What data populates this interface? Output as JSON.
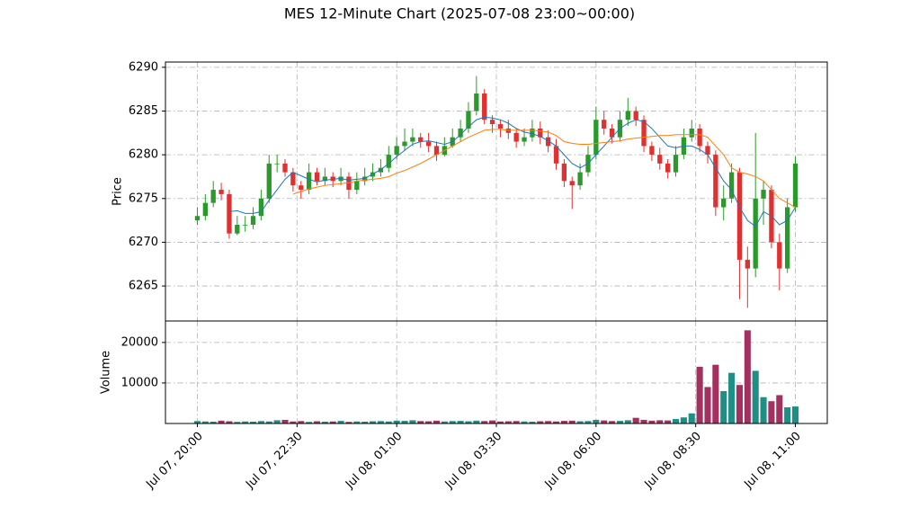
{
  "chart_data": {
    "type": "candlestick",
    "title": "MES 12-Minute Chart (2025-07-08 23:00~00:00)",
    "ylabel": "Price",
    "volume_label": "Volume",
    "grid": true,
    "xlim": [
      -4,
      79
    ],
    "xticks": [
      {
        "value": 0,
        "label": "Jul 07, 20:00"
      },
      {
        "value": 12.5,
        "label": "Jul 07, 22:30"
      },
      {
        "value": 25,
        "label": "Jul 08, 01:00"
      },
      {
        "value": 37.5,
        "label": "Jul 08, 03:30"
      },
      {
        "value": 50,
        "label": "Jul 08, 06:00"
      },
      {
        "value": 62.5,
        "label": "Jul 08, 08:30"
      },
      {
        "value": 75,
        "label": "Jul 08, 11:00"
      }
    ],
    "ylim": [
      6261,
      6290.6
    ],
    "yticks": [
      6265,
      6270,
      6275,
      6280,
      6285,
      6290
    ],
    "y2lim": [
      0,
      25300
    ],
    "y2ticks": [
      10000,
      20000
    ],
    "up_color": "#2a9a2a",
    "down_color": "#e03030",
    "volume_up_color": "#1f8f86",
    "volume_down_color": "#a3305f",
    "open": [
      6272.5,
      6273,
      6274.5,
      6276,
      6275.5,
      6271,
      6272,
      6272,
      6273,
      6275,
      6279,
      6279,
      6278,
      6276.5,
      6276,
      6278,
      6277,
      6277.5,
      6277,
      6277.5,
      6276,
      6277,
      6277.5,
      6278,
      6278.5,
      6280,
      6281,
      6281.5,
      6282,
      6281.5,
      6281,
      6280,
      6281,
      6282,
      6283,
      6285,
      6287,
      6284,
      6283.5,
      6283,
      6282.5,
      6281.5,
      6282,
      6283,
      6282,
      6281,
      6279,
      6277,
      6276.5,
      6278,
      6280,
      6284,
      6283,
      6282,
      6284,
      6285,
      6284,
      6281,
      6280,
      6279,
      6278,
      6280,
      6282,
      6283,
      6281,
      6280,
      6274,
      6275,
      6278,
      6268,
      6267,
      6275,
      6276,
      6270,
      6267,
      6274
    ],
    "high": [
      6274,
      6275.5,
      6277,
      6276.8,
      6276,
      6273,
      6273,
      6274,
      6276,
      6280,
      6280,
      6279.5,
      6278.5,
      6277,
      6279,
      6278.5,
      6278.5,
      6278,
      6278.5,
      6278,
      6278,
      6278.5,
      6279,
      6279.5,
      6281,
      6282,
      6283,
      6283,
      6282.5,
      6282.5,
      6281.5,
      6282,
      6283,
      6284,
      6286,
      6289,
      6287.5,
      6284.5,
      6284,
      6284,
      6283,
      6283,
      6284,
      6283.8,
      6282.8,
      6281.8,
      6279.5,
      6277.5,
      6279,
      6281,
      6285.5,
      6285,
      6283.5,
      6285,
      6286.5,
      6285.5,
      6284.5,
      6281.5,
      6280.8,
      6279.5,
      6281,
      6283,
      6284,
      6283.5,
      6281.5,
      6280.5,
      6276.5,
      6279,
      6278.5,
      6269.5,
      6282.5,
      6277,
      6276.5,
      6271,
      6275,
      6279.8
    ],
    "low": [
      6272,
      6272.5,
      6274,
      6274.8,
      6270.4,
      6270.8,
      6271.2,
      6271.5,
      6272.5,
      6274.5,
      6278,
      6277.5,
      6275.8,
      6275,
      6275.5,
      6276.5,
      6276.5,
      6276.3,
      6276.5,
      6275,
      6275.5,
      6276.5,
      6277,
      6277.5,
      6278,
      6279.5,
      6280.5,
      6281,
      6280.8,
      6280.3,
      6279.3,
      6279.8,
      6280.8,
      6281.5,
      6282.5,
      6284.5,
      6283.5,
      6282.5,
      6282,
      6281.8,
      6280.8,
      6281,
      6281.5,
      6281.2,
      6280.3,
      6278.3,
      6276.3,
      6273.8,
      6276,
      6277.5,
      6279.5,
      6282.3,
      6281.3,
      6281.5,
      6283.3,
      6283.3,
      6280.3,
      6279.3,
      6278.3,
      6277.3,
      6277.5,
      6279.5,
      6281.5,
      6280.3,
      6279,
      6273,
      6272.5,
      6274.5,
      6263.5,
      6262.5,
      6266,
      6272,
      6269.3,
      6264.5,
      6266.5,
      6273.5
    ],
    "close": [
      6273,
      6274.5,
      6276,
      6275.5,
      6271,
      6272,
      6272,
      6273,
      6275,
      6279,
      6279,
      6278,
      6276.5,
      6276,
      6278,
      6277,
      6277.5,
      6277,
      6277.5,
      6276,
      6277,
      6277.5,
      6278,
      6278.5,
      6280,
      6281,
      6281.5,
      6282,
      6281.5,
      6281,
      6280,
      6281,
      6282,
      6283,
      6285,
      6287,
      6284,
      6283.5,
      6283,
      6282.5,
      6281.5,
      6282,
      6283,
      6282,
      6281,
      6279,
      6277,
      6276.5,
      6278,
      6280,
      6284,
      6283,
      6282,
      6284,
      6285,
      6284,
      6281,
      6280,
      6279,
      6278,
      6280,
      6282,
      6283,
      6281,
      6280,
      6274,
      6275,
      6278,
      6268,
      6267,
      6275,
      6276,
      6270,
      6267,
      6274,
      6279
    ],
    "volume": [
      600,
      500,
      450,
      700,
      550,
      400,
      500,
      450,
      600,
      500,
      800,
      900,
      500,
      600,
      400,
      550,
      450,
      500,
      650,
      400,
      500,
      450,
      550,
      600,
      500,
      700,
      650,
      800,
      600,
      550,
      700,
      500,
      600,
      650,
      550,
      700,
      600,
      750,
      500,
      550,
      600,
      500,
      450,
      550,
      600,
      500,
      650,
      700,
      550,
      600,
      900,
      750,
      600,
      650,
      800,
      1400,
      900,
      700,
      800,
      750,
      1100,
      1500,
      2500,
      14000,
      9000,
      14500,
      8000,
      12500,
      9500,
      23000,
      13000,
      6500,
      5500,
      7000,
      4000,
      4200
    ],
    "moving_averages": [
      {
        "color": "#1f77b4",
        "values": [
          null,
          null,
          null,
          null,
          6273.5,
          6273.6,
          6273.3,
          6273.3,
          6273.5,
          6274.8,
          6276,
          6277.2,
          6278,
          6277.6,
          6277.2,
          6276.9,
          6277.1,
          6277.2,
          6277.3,
          6277.1,
          6277.2,
          6277.3,
          6277.8,
          6278.3,
          6279,
          6279.8,
          6280.5,
          6281.2,
          6281.5,
          6281.6,
          6281.4,
          6281.2,
          6281.5,
          6282.3,
          6283.2,
          6284,
          6284.3,
          6284.2,
          6284,
          6283.6,
          6283,
          6282.6,
          6282.4,
          6282.1,
          6281.6,
          6281,
          6280,
          6279,
          6278.5,
          6279,
          6280,
          6281,
          6282,
          6283,
          6283.6,
          6284,
          6283.8,
          6283,
          6282,
          6281,
          6280.8,
          6281,
          6281,
          6280.6,
          6280,
          6278.5,
          6277,
          6276,
          6274,
          6272.5,
          6271.8,
          6273.5,
          6273,
          6272,
          6272.5,
          6274
        ]
      },
      {
        "color": "#ff7f0e",
        "values": [
          null,
          null,
          null,
          null,
          null,
          null,
          null,
          null,
          null,
          null,
          null,
          null,
          6275.5,
          6275.8,
          6276.1,
          6276.3,
          6276.5,
          6276.6,
          6276.7,
          6276.8,
          6277,
          6277.1,
          6277.2,
          6277.3,
          6277.5,
          6277.9,
          6278.2,
          6278.6,
          6279,
          6279.5,
          6280,
          6280.5,
          6281,
          6281.5,
          6282,
          6282.4,
          6282.8,
          6282.9,
          6282.9,
          6282.8,
          6282.8,
          6282.8,
          6282.8,
          6282.7,
          6282.6,
          6282.2,
          6281.5,
          6281.3,
          6281.2,
          6281.2,
          6281.3,
          6281.4,
          6281.5,
          6281.6,
          6281.8,
          6281.9,
          6282,
          6282.1,
          6282.2,
          6282.2,
          6282.3,
          6282.3,
          6282.3,
          6282.3,
          6282,
          6281,
          6280,
          6278.5,
          6278,
          6277.8,
          6277.5,
          6277,
          6276,
          6275,
          6274.5,
          6274
        ]
      }
    ]
  }
}
